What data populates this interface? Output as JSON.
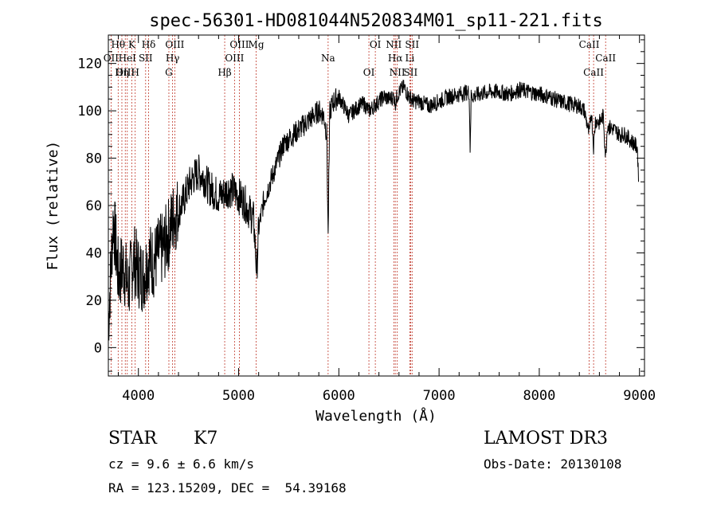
{
  "chart_data": {
    "type": "line",
    "title": "spec-56301-HD081044N520834M01_sp11-221.fits",
    "xlabel": "Wavelength (Å)",
    "ylabel": "Flux (relative)",
    "xlim": [
      3700,
      9050
    ],
    "ylim": [
      -12,
      132
    ],
    "xticks": [
      4000,
      5000,
      6000,
      7000,
      8000,
      9000
    ],
    "yticks": [
      0,
      20,
      40,
      60,
      80,
      100,
      120
    ],
    "xtick_labels": [
      "4000",
      "5000",
      "6000",
      "7000",
      "8000",
      "9000"
    ],
    "ytick_labels": [
      "0",
      "20",
      "40",
      "60",
      "80",
      "100",
      "120"
    ],
    "series": [
      {
        "name": "flux",
        "x": [
          3700,
          3750,
          3800,
          3850,
          3900,
          3950,
          4000,
          4050,
          4100,
          4150,
          4200,
          4250,
          4300,
          4350,
          4400,
          4450,
          4500,
          4550,
          4600,
          4650,
          4700,
          4750,
          4800,
          4850,
          4900,
          4950,
          5000,
          5050,
          5100,
          5150,
          5180,
          5200,
          5250,
          5300,
          5350,
          5400,
          5450,
          5500,
          5550,
          5600,
          5650,
          5700,
          5750,
          5800,
          5850,
          5880,
          5893,
          5900,
          5910,
          5950,
          6000,
          6050,
          6100,
          6150,
          6200,
          6250,
          6300,
          6350,
          6400,
          6450,
          6500,
          6550,
          6563,
          6580,
          6600,
          6650,
          6700,
          6750,
          6800,
          6900,
          7000,
          7100,
          7200,
          7300,
          7310,
          7320,
          7400,
          7500,
          7600,
          7700,
          7800,
          7900,
          8000,
          8100,
          8200,
          8300,
          8400,
          8450,
          8498,
          8520,
          8542,
          8560,
          8600,
          8640,
          8662,
          8680,
          8700,
          8750,
          8800,
          8850,
          8900,
          8950,
          8980,
          8990
        ],
        "y": [
          10,
          55,
          30,
          35,
          25,
          38,
          32,
          30,
          38,
          36,
          40,
          42,
          48,
          55,
          58,
          62,
          68,
          72,
          74,
          72,
          68,
          66,
          64,
          65,
          67,
          66,
          64,
          62,
          58,
          54,
          32,
          50,
          62,
          68,
          74,
          80,
          86,
          88,
          90,
          92,
          94,
          96,
          98,
          100,
          98,
          90,
          46,
          70,
          100,
          104,
          106,
          102,
          98,
          100,
          102,
          103,
          100,
          102,
          104,
          106,
          105,
          106,
          103,
          106,
          108,
          110,
          106,
          104,
          104,
          102,
          104,
          106,
          107,
          108,
          84,
          106,
          107,
          108,
          108,
          107,
          109,
          108,
          107,
          106,
          104,
          103,
          102,
          100,
          90,
          100,
          85,
          96,
          95,
          98,
          80,
          94,
          93,
          92,
          90,
          90,
          88,
          86,
          84,
          70
        ]
      }
    ],
    "spectral_lines": [
      {
        "label": "Hθ",
        "wavelength": 3798
      },
      {
        "label": "OII",
        "wavelength": 3727
      },
      {
        "label": "OIII",
        "wavelength": 3869
      },
      {
        "label": "K",
        "wavelength": 3934
      },
      {
        "label": "HeI",
        "wavelength": 3889
      },
      {
        "label": "Hη",
        "wavelength": 3835
      },
      {
        "label": "Hδ",
        "wavelength": 4102
      },
      {
        "label": "SII",
        "wavelength": 4072
      },
      {
        "label": "H",
        "wavelength": 3968
      },
      {
        "label": "OIII",
        "wavelength": 4363
      },
      {
        "label": "Hγ",
        "wavelength": 4341
      },
      {
        "label": "G",
        "wavelength": 4304
      },
      {
        "label": "OIII",
        "wavelength": 5007
      },
      {
        "label": "OIII",
        "wavelength": 4959
      },
      {
        "label": "Hβ",
        "wavelength": 4861
      },
      {
        "label": "Mg",
        "wavelength": 5175
      },
      {
        "label": "Na",
        "wavelength": 5893
      },
      {
        "label": "OI",
        "wavelength": 6300
      },
      {
        "label": "OI",
        "wavelength": 6364
      },
      {
        "label": "Hα",
        "wavelength": 6563
      },
      {
        "label": "SII",
        "wavelength": 6716
      },
      {
        "label": "NII",
        "wavelength": 6548
      },
      {
        "label": "Li",
        "wavelength": 6708
      },
      {
        "label": "NII",
        "wavelength": 6583
      },
      {
        "label": "SII",
        "wavelength": 6731
      },
      {
        "label": "CaII",
        "wavelength": 8662
      },
      {
        "label": "CaII",
        "wavelength": 8542
      },
      {
        "label": "CaII",
        "wavelength": 8498
      }
    ]
  },
  "info": {
    "object_type": "STAR",
    "subclass": "K7",
    "survey": "LAMOST DR3",
    "redshift": "cz = 9.6 ± 6.6 km/s",
    "obs_date": "Obs-Date: 20130108",
    "coords": "RA = 123.15209, DEC =  54.39168"
  },
  "colors": {
    "line": "#000000",
    "marker": "#c0392b"
  }
}
